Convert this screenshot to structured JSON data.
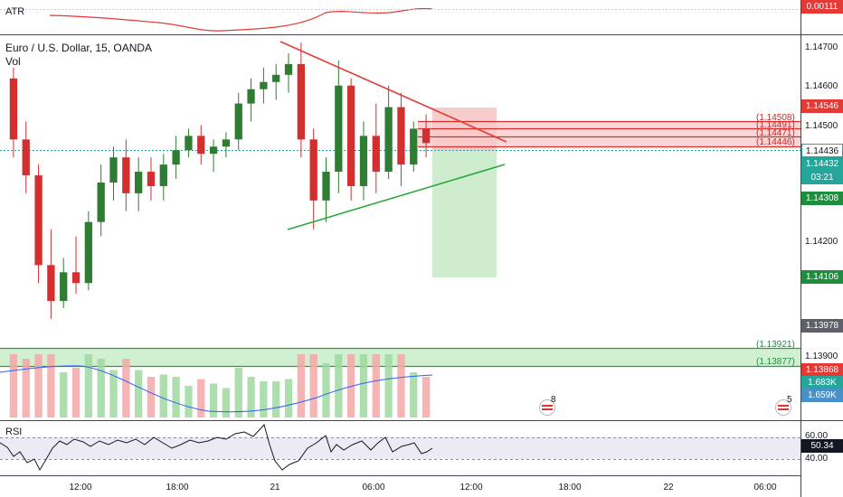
{
  "header": {
    "title": "Euro / U.S. Dollar, 15, OANDA",
    "vol_label": "Vol",
    "atr_label": "ATR",
    "atr_value": "0.00111",
    "rsi_label": "RSI",
    "rsi_value": "50.34",
    "rsi_levels": [
      "60.00",
      "40.00"
    ]
  },
  "price_axis": {
    "labels": [
      "1.14700",
      "1.14600",
      "1.14500",
      "1.14200",
      "1.13900"
    ],
    "tags": {
      "red_level": "1.14546",
      "current": "1.14436",
      "price_tag": "1.14432",
      "countdown": "03:21",
      "green_level_1": "1.14308",
      "green_level_2": "1.14106",
      "grey_level": "1.13978",
      "red_low": "1.13868",
      "vol_1": "1.683K",
      "vol_2": "1.659K"
    }
  },
  "zones": {
    "resistance_labels": [
      "(1.14508)",
      "(1.14491)",
      "(1.14471)",
      "(1.14446)"
    ],
    "support_labels": [
      "(1.13921)",
      "(1.13877)"
    ]
  },
  "events": [
    {
      "count": "8"
    },
    {
      "count": "5"
    }
  ],
  "time_axis": [
    "12:00",
    "18:00",
    "21",
    "06:00",
    "12:00",
    "18:00",
    "22",
    "06:00"
  ],
  "colors": {
    "up": "#26a69a",
    "down": "#ef5350",
    "candle_up": "#2e7d32",
    "candle_down": "#d32f2f",
    "trend_red": "#e53935",
    "trend_green": "#2aa83a",
    "zone_red": "#f4b6b6",
    "zone_green": "#b9e6b9",
    "blue": "#2962ff"
  },
  "chart_data": {
    "type": "candlestick",
    "symbol": "Euro / U.S. Dollar, 15, OANDA",
    "y_range": [
      1.1397,
      1.147
    ],
    "candles": [
      [
        1.1462,
        1.1465,
        1.144,
        1.1445
      ],
      [
        1.1445,
        1.145,
        1.143,
        1.1435
      ],
      [
        1.1435,
        1.1438,
        1.1405,
        1.141
      ],
      [
        1.141,
        1.142,
        1.1395,
        1.14
      ],
      [
        1.14,
        1.1412,
        1.1398,
        1.1408
      ],
      [
        1.1408,
        1.1418,
        1.1402,
        1.1405
      ],
      [
        1.1405,
        1.1425,
        1.1403,
        1.1422
      ],
      [
        1.1422,
        1.1438,
        1.1418,
        1.1433
      ],
      [
        1.1433,
        1.1443,
        1.1428,
        1.144
      ],
      [
        1.144,
        1.1445,
        1.1425,
        1.143
      ],
      [
        1.143,
        1.144,
        1.1425,
        1.1436
      ],
      [
        1.1436,
        1.144,
        1.1428,
        1.1432
      ],
      [
        1.1432,
        1.1441,
        1.1428,
        1.1438
      ],
      [
        1.1438,
        1.1446,
        1.1434,
        1.1442
      ],
      [
        1.1442,
        1.1448,
        1.144,
        1.1446
      ],
      [
        1.1446,
        1.1449,
        1.1438,
        1.1441
      ],
      [
        1.1441,
        1.1445,
        1.1436,
        1.1443
      ],
      [
        1.1443,
        1.1447,
        1.144,
        1.1445
      ],
      [
        1.1445,
        1.1458,
        1.1442,
        1.1455
      ],
      [
        1.1455,
        1.1462,
        1.145,
        1.1459
      ],
      [
        1.1459,
        1.1465,
        1.1455,
        1.1461
      ],
      [
        1.1461,
        1.1466,
        1.1456,
        1.1463
      ],
      [
        1.1463,
        1.1469,
        1.1458,
        1.1466
      ],
      [
        1.1466,
        1.1472,
        1.144,
        1.1445
      ],
      [
        1.1445,
        1.1448,
        1.142,
        1.1428
      ],
      [
        1.1428,
        1.144,
        1.1422,
        1.1436
      ],
      [
        1.1436,
        1.1467,
        1.143,
        1.146
      ],
      [
        1.146,
        1.1462,
        1.1428,
        1.1432
      ],
      [
        1.1432,
        1.145,
        1.1428,
        1.1446
      ],
      [
        1.1446,
        1.1455,
        1.143,
        1.1436
      ],
      [
        1.1436,
        1.146,
        1.1434,
        1.1454
      ],
      [
        1.1454,
        1.1458,
        1.1432,
        1.1438
      ],
      [
        1.1438,
        1.145,
        1.1436,
        1.1448
      ],
      [
        1.1448,
        1.1452,
        1.144,
        1.1444
      ]
    ],
    "volume_labels": [
      "1.683K",
      "1.659K"
    ],
    "rsi": {
      "levels": [
        60,
        40
      ],
      "last": 50.34
    },
    "atr": {
      "last": 0.00111
    }
  }
}
